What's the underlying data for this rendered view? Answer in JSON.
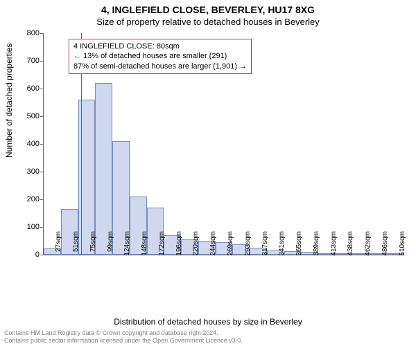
{
  "title": "4, INGLEFIELD CLOSE, BEVERLEY, HU17 8XG",
  "subtitle": "Size of property relative to detached houses in Beverley",
  "y_axis_label": "Number of detached properties",
  "x_axis_label": "Distribution of detached houses by size in Beverley",
  "footer_line1": "Contains HM Land Registry data © Crown copyright and database right 2024.",
  "footer_line2": "Contains public sector information licensed under the Open Government Licence v3.0.",
  "chart": {
    "type": "histogram",
    "ylim": [
      0,
      800
    ],
    "ytick_step": 100,
    "bar_fill": "#cfd8ef",
    "bar_stroke": "#7a8db8",
    "background": "#ffffff",
    "x_categories": [
      "27sqm",
      "51sqm",
      "75sqm",
      "99sqm",
      "124sqm",
      "148sqm",
      "172sqm",
      "196sqm",
      "220sqm",
      "244sqm",
      "269sqm",
      "293sqm",
      "317sqm",
      "341sqm",
      "365sqm",
      "389sqm",
      "413sqm",
      "438sqm",
      "462sqm",
      "486sqm",
      "510sqm"
    ],
    "values": [
      22,
      165,
      560,
      620,
      410,
      210,
      170,
      70,
      55,
      50,
      45,
      38,
      25,
      15,
      12,
      10,
      5,
      4,
      4,
      3,
      2
    ],
    "reference_line": {
      "position_index": 2.2,
      "color": "#dd3333"
    },
    "annotation": {
      "line1": "4 INGLEFIELD CLOSE: 80sqm",
      "line2": "← 13% of detached houses are smaller (291)",
      "line3": "87% of semi-detached houses are larger (1,901) →",
      "border_color": "#cc3333"
    }
  }
}
